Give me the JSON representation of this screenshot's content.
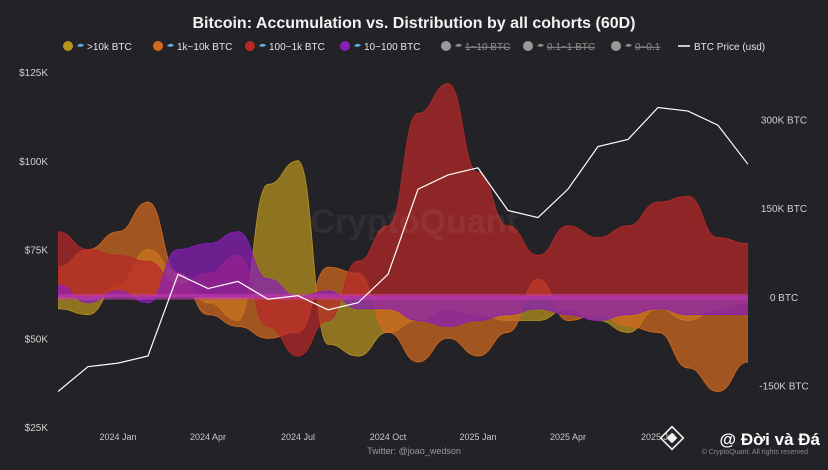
{
  "title": "Bitcoin: Accumulation vs. Distribution by all cohorts (60D)",
  "credit": "Twitter: @joao_wedson",
  "watermark": "CryptoQuant",
  "copyright": "© CryptoQuant. All rights reserved",
  "overlay_text": "@ Đời và Đá",
  "legend": [
    {
      "label": ">10k BTC",
      "icon": "whale-icon",
      "color": "#b8941f",
      "active": true
    },
    {
      "label": "1k~10k BTC",
      "icon": "shark-icon",
      "color": "#d2691e",
      "active": true
    },
    {
      "label": "100~1k BTC",
      "icon": "dolphin-icon",
      "color": "#b82828",
      "active": true
    },
    {
      "label": "10~100 BTC",
      "icon": "fish-icon",
      "color": "#8a1fb8",
      "active": true
    },
    {
      "label": "1~10 BTC",
      "icon": "octopus-icon",
      "color": "#9a9a9a",
      "active": false
    },
    {
      "label": "0.1~1 BTC",
      "icon": "crab-icon",
      "color": "#9a9a9a",
      "active": false
    },
    {
      "label": "0~0.1",
      "icon": "shrimp-icon",
      "color": "#9a9a9a",
      "active": false
    },
    {
      "label": "BTC Price (usd)",
      "icon": "line-icon",
      "color": "#ffffff",
      "active": true
    }
  ],
  "chart_data": {
    "type": "area",
    "title": "Bitcoin: Accumulation vs. Distribution by all cohorts (60D)",
    "x_ticks": [
      "2024 Jan",
      "2024 Apr",
      "2024 Jul",
      "2024 Oct",
      "2025 Jan",
      "2025 Apr",
      "2025 Jul"
    ],
    "left_axis": {
      "ticks": [
        "$125K",
        "$100K",
        "$75K",
        "$50K",
        "$25K"
      ],
      "values": [
        125000,
        100000,
        75000,
        50000,
        25000
      ],
      "range": [
        25000,
        125000
      ]
    },
    "right_axis": {
      "ticks": [
        "300K BTC",
        "150K BTC",
        "0 BTC",
        "-150K BTC"
      ],
      "values": [
        300000,
        150000,
        0,
        -150000
      ],
      "range": [
        -220000,
        380000
      ]
    },
    "x": [
      "2023-11",
      "2023-12",
      "2024-01",
      "2024-02",
      "2024-03",
      "2024-04",
      "2024-05",
      "2024-06",
      "2024-07",
      "2024-08",
      "2024-09",
      "2024-10",
      "2024-11",
      "2024-12",
      "2025-01",
      "2025-02",
      "2025-03",
      "2025-04",
      "2025-05",
      "2025-06",
      "2025-07",
      "2025-08",
      "2025-09",
      "2025-10"
    ],
    "series": [
      {
        "name": ">10k BTC",
        "color": "#b8941f",
        "values": [
          -20000,
          -30000,
          20000,
          80000,
          40000,
          -10000,
          -40000,
          190000,
          230000,
          -80000,
          -100000,
          -60000,
          -40000,
          -20000,
          -30000,
          -40000,
          -40000,
          -20000,
          -40000,
          -60000,
          -20000,
          -40000,
          -20000,
          -10000
        ]
      },
      {
        "name": "1k~10k BTC",
        "color": "#d2691e",
        "values": [
          50000,
          80000,
          110000,
          160000,
          40000,
          -30000,
          -50000,
          -70000,
          -60000,
          50000,
          40000,
          -60000,
          -110000,
          -70000,
          -100000,
          -60000,
          30000,
          -40000,
          -30000,
          -50000,
          -60000,
          -120000,
          -160000,
          -110000
        ]
      },
      {
        "name": "100~1k BTC",
        "color": "#b82828",
        "values": [
          110000,
          80000,
          70000,
          60000,
          20000,
          40000,
          70000,
          -50000,
          -100000,
          -40000,
          60000,
          120000,
          310000,
          360000,
          210000,
          120000,
          70000,
          120000,
          100000,
          120000,
          160000,
          170000,
          100000,
          90000
        ]
      },
      {
        "name": "10~100 BTC",
        "color": "#8a1fb8",
        "values": [
          20000,
          -10000,
          10000,
          -10000,
          80000,
          90000,
          110000,
          30000,
          0,
          10000,
          -20000,
          -20000,
          -40000,
          -50000,
          -40000,
          -30000,
          -20000,
          -30000,
          -40000,
          -30000,
          -20000,
          -30000,
          -30000,
          -30000
        ]
      }
    ],
    "btc_price": {
      "name": "BTC Price (usd)",
      "color": "#ffffff",
      "values": [
        35000,
        42000,
        43000,
        45000,
        68000,
        64000,
        66000,
        61000,
        62000,
        58000,
        60000,
        68000,
        92000,
        96000,
        98000,
        86000,
        84000,
        92000,
        104000,
        106000,
        115000,
        114000,
        110000,
        99000
      ]
    },
    "grid": false,
    "legend_position": "top"
  }
}
